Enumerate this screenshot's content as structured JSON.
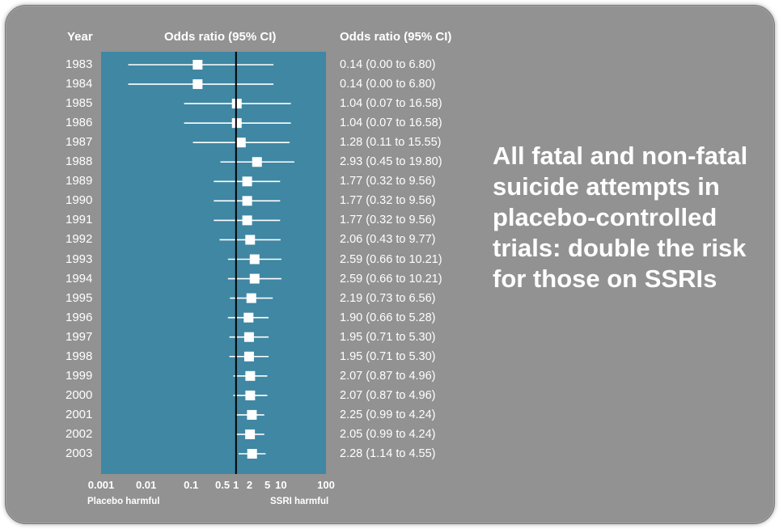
{
  "caption": "All fatal and non-fatal suicide attempts in placebo-controlled trials: double the risk for those on SSRIs",
  "colors": {
    "slide_bg": "#929292",
    "panel": "#3f87a3",
    "marker": "#ffffff",
    "ref_line": "#000000"
  },
  "chart_data": {
    "type": "forest",
    "scale": "log",
    "xlim": [
      0.001,
      100
    ],
    "reference_value": 1,
    "headers": {
      "year": "Year",
      "plot": "Odds ratio (95% CI)",
      "ci": "Odds ratio (95% CI)"
    },
    "tick_labels": [
      "0.001",
      "0.01",
      "0.1",
      "0.5",
      "1",
      "2",
      "5",
      "10",
      "100"
    ],
    "tick_values": [
      0.001,
      0.01,
      0.1,
      0.5,
      1,
      2,
      5,
      10,
      100
    ],
    "footer_left": "Placebo harmful",
    "footer_right": "SSRI harmful",
    "rows": [
      {
        "year": "1983",
        "or": 0.14,
        "lo": 0.004,
        "hi": 6.8,
        "label": "0.14 (0.00 to 6.80)"
      },
      {
        "year": "1984",
        "or": 0.14,
        "lo": 0.004,
        "hi": 6.8,
        "label": "0.14 (0.00 to 6.80)"
      },
      {
        "year": "1985",
        "or": 1.04,
        "lo": 0.07,
        "hi": 16.58,
        "label": "1.04 (0.07 to 16.58)"
      },
      {
        "year": "1986",
        "or": 1.04,
        "lo": 0.07,
        "hi": 16.58,
        "label": "1.04 (0.07 to 16.58)"
      },
      {
        "year": "1987",
        "or": 1.28,
        "lo": 0.11,
        "hi": 15.55,
        "label": "1.28 (0.11 to 15.55)"
      },
      {
        "year": "1988",
        "or": 2.93,
        "lo": 0.45,
        "hi": 19.8,
        "label": "2.93 (0.45 to 19.80)"
      },
      {
        "year": "1989",
        "or": 1.77,
        "lo": 0.32,
        "hi": 9.56,
        "label": "1.77 (0.32 to 9.56)"
      },
      {
        "year": "1990",
        "or": 1.77,
        "lo": 0.32,
        "hi": 9.56,
        "label": "1.77 (0.32 to 9.56)"
      },
      {
        "year": "1991",
        "or": 1.77,
        "lo": 0.32,
        "hi": 9.56,
        "label": "1.77 (0.32 to 9.56)"
      },
      {
        "year": "1992",
        "or": 2.06,
        "lo": 0.43,
        "hi": 9.77,
        "label": "2.06 (0.43 to 9.77)"
      },
      {
        "year": "1993",
        "or": 2.59,
        "lo": 0.66,
        "hi": 10.21,
        "label": "2.59 (0.66 to 10.21)"
      },
      {
        "year": "1994",
        "or": 2.59,
        "lo": 0.66,
        "hi": 10.21,
        "label": "2.59 (0.66 to 10.21)"
      },
      {
        "year": "1995",
        "or": 2.19,
        "lo": 0.73,
        "hi": 6.56,
        "label": "2.19 (0.73 to 6.56)"
      },
      {
        "year": "1996",
        "or": 1.9,
        "lo": 0.66,
        "hi": 5.28,
        "label": "1.90 (0.66 to 5.28)"
      },
      {
        "year": "1997",
        "or": 1.95,
        "lo": 0.71,
        "hi": 5.3,
        "label": "1.95 (0.71 to 5.30)"
      },
      {
        "year": "1998",
        "or": 1.95,
        "lo": 0.71,
        "hi": 5.3,
        "label": "1.95 (0.71 to 5.30)"
      },
      {
        "year": "1999",
        "or": 2.07,
        "lo": 0.87,
        "hi": 4.96,
        "label": "2.07 (0.87 to 4.96)"
      },
      {
        "year": "2000",
        "or": 2.07,
        "lo": 0.87,
        "hi": 4.96,
        "label": "2.07 (0.87 to 4.96)"
      },
      {
        "year": "2001",
        "or": 2.25,
        "lo": 0.99,
        "hi": 4.24,
        "label": "2.25 (0.99 to 4.24)"
      },
      {
        "year": "2002",
        "or": 2.05,
        "lo": 0.99,
        "hi": 4.24,
        "label": "2.05 (0.99 to 4.24)"
      },
      {
        "year": "2003",
        "or": 2.28,
        "lo": 1.14,
        "hi": 4.55,
        "label": "2.28 (1.14 to 4.55)"
      }
    ]
  }
}
